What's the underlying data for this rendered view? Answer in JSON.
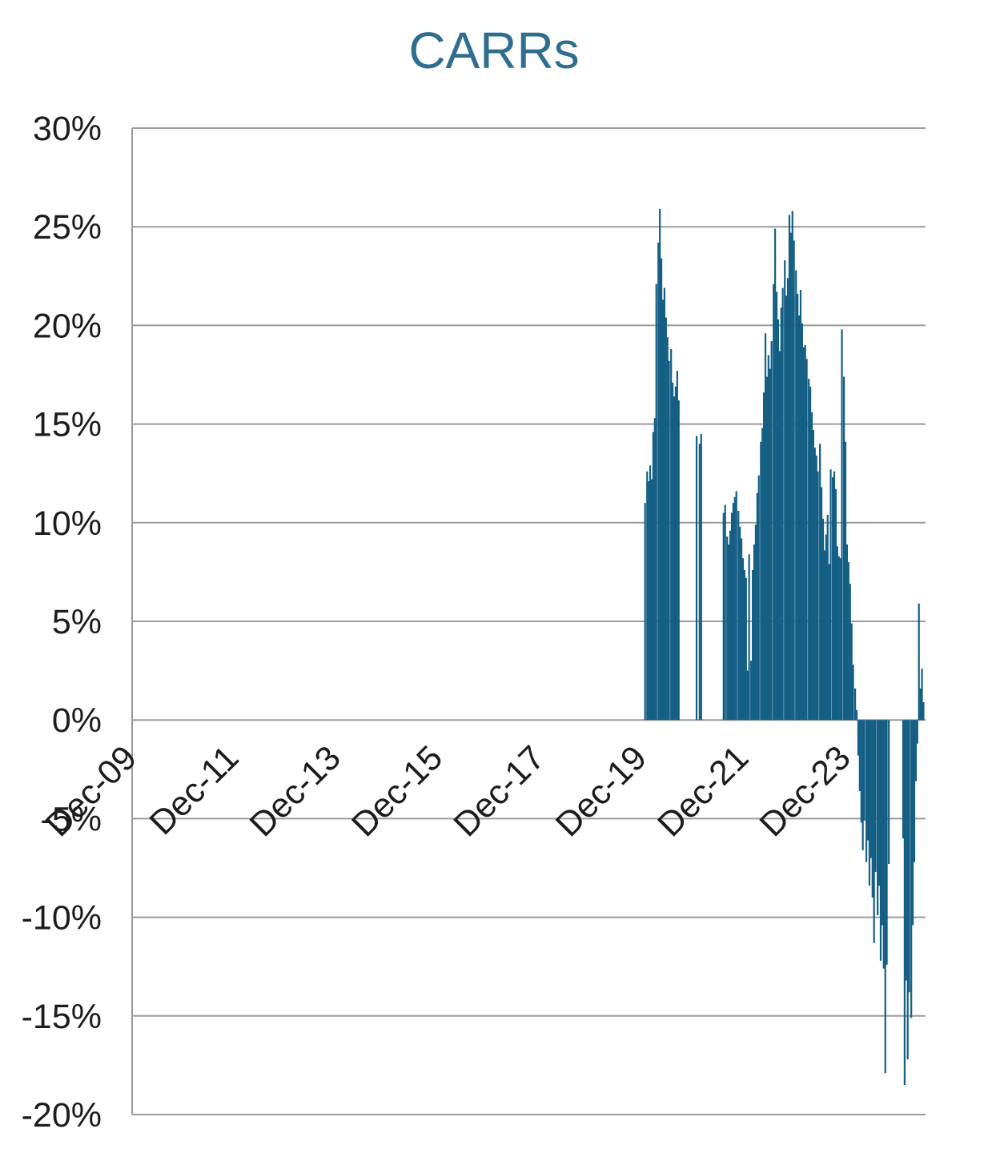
{
  "chart_data": {
    "type": "bar",
    "title": "CARRs",
    "legend": false,
    "grid": true,
    "colors": {
      "title": "#2e6e91",
      "bar": "#155f85",
      "grid": "#9b9b9b",
      "axis_text": "#1c1c1c",
      "background": "#ffffff"
    },
    "y_axis": {
      "min": -20,
      "max": 30,
      "step": 5,
      "ticks": [
        {
          "v": 30,
          "label": "30%"
        },
        {
          "v": 25,
          "label": "25%"
        },
        {
          "v": 20,
          "label": "20%"
        },
        {
          "v": 15,
          "label": "15%"
        },
        {
          "v": 10,
          "label": "10%"
        },
        {
          "v": 5,
          "label": "5%"
        },
        {
          "v": 0,
          "label": "0%"
        },
        {
          "v": -5,
          "label": "-5%"
        },
        {
          "v": -10,
          "label": "-10%"
        },
        {
          "v": -15,
          "label": "-15%"
        },
        {
          "v": -20,
          "label": "-20%"
        }
      ]
    },
    "x_axis": {
      "unit": "years since Dec-2009",
      "range": [
        0,
        15.56
      ],
      "label_rotation_deg": -45,
      "ticks": [
        {
          "pos": 0,
          "label": "Dec-09"
        },
        {
          "pos": 2,
          "label": "Dec-11"
        },
        {
          "pos": 4,
          "label": "Dec-13"
        },
        {
          "pos": 6,
          "label": "Dec-15"
        },
        {
          "pos": 8,
          "label": "Dec-17"
        },
        {
          "pos": 10,
          "label": "Dec-19"
        },
        {
          "pos": 12,
          "label": "Dec-21"
        },
        {
          "pos": 14,
          "label": "Dec-23"
        }
      ]
    },
    "points": [
      [
        10.06,
        11.0
      ],
      [
        10.1,
        12.6
      ],
      [
        10.13,
        12.1
      ],
      [
        10.16,
        12.9
      ],
      [
        10.19,
        12.2
      ],
      [
        10.22,
        14.6
      ],
      [
        10.25,
        15.3
      ],
      [
        10.28,
        22.1
      ],
      [
        10.32,
        24.2
      ],
      [
        10.35,
        25.9
      ],
      [
        10.38,
        23.4
      ],
      [
        10.41,
        21.3
      ],
      [
        10.44,
        21.9
      ],
      [
        10.47,
        20.4
      ],
      [
        10.5,
        19.4
      ],
      [
        10.53,
        18.2
      ],
      [
        10.57,
        18.8
      ],
      [
        10.6,
        17.1
      ],
      [
        10.63,
        16.4
      ],
      [
        10.66,
        16.9
      ],
      [
        10.69,
        17.7
      ],
      [
        10.72,
        16.2
      ],
      [
        11.07,
        14.4
      ],
      [
        11.13,
        14.0
      ],
      [
        11.16,
        14.5
      ],
      [
        11.6,
        10.5
      ],
      [
        11.63,
        10.9
      ],
      [
        11.67,
        9.3
      ],
      [
        11.7,
        8.9
      ],
      [
        11.73,
        9.6
      ],
      [
        11.76,
        10.5
      ],
      [
        11.79,
        11.0
      ],
      [
        11.82,
        11.3
      ],
      [
        11.85,
        11.6
      ],
      [
        11.89,
        10.6
      ],
      [
        11.92,
        9.8
      ],
      [
        11.95,
        9.2
      ],
      [
        11.98,
        8.2
      ],
      [
        12.01,
        7.6
      ],
      [
        12.04,
        7.2
      ],
      [
        12.07,
        2.5
      ],
      [
        12.1,
        8.4
      ],
      [
        12.14,
        3.0
      ],
      [
        12.17,
        7.6
      ],
      [
        12.2,
        8.9
      ],
      [
        12.23,
        9.9
      ],
      [
        12.26,
        11.5
      ],
      [
        12.29,
        12.4
      ],
      [
        12.33,
        14.1
      ],
      [
        12.36,
        14.8
      ],
      [
        12.39,
        16.6
      ],
      [
        12.42,
        19.6
      ],
      [
        12.45,
        17.4
      ],
      [
        12.48,
        18.5
      ],
      [
        12.51,
        17.8
      ],
      [
        12.54,
        19.2
      ],
      [
        12.58,
        22.1
      ],
      [
        12.61,
        24.9
      ],
      [
        12.64,
        21.7
      ],
      [
        12.67,
        20.3
      ],
      [
        12.7,
        18.7
      ],
      [
        12.73,
        20.9
      ],
      [
        12.76,
        21.9
      ],
      [
        12.8,
        23.3
      ],
      [
        12.83,
        21.5
      ],
      [
        12.86,
        22.4
      ],
      [
        12.89,
        25.6
      ],
      [
        12.92,
        24.7
      ],
      [
        12.95,
        25.8
      ],
      [
        12.98,
        24.3
      ],
      [
        13.02,
        22.8
      ],
      [
        13.05,
        21.6
      ],
      [
        13.08,
        20.5
      ],
      [
        13.11,
        21.8
      ],
      [
        13.14,
        20.1
      ],
      [
        13.17,
        18.9
      ],
      [
        13.2,
        19.0
      ],
      [
        13.23,
        18.3
      ],
      [
        13.27,
        17.3
      ],
      [
        13.3,
        16.9
      ],
      [
        13.33,
        15.6
      ],
      [
        13.36,
        14.7
      ],
      [
        13.39,
        13.8
      ],
      [
        13.42,
        13.4
      ],
      [
        13.45,
        12.6
      ],
      [
        13.49,
        14.0
      ],
      [
        13.52,
        11.8
      ],
      [
        13.55,
        10.2
      ],
      [
        13.58,
        8.6
      ],
      [
        13.61,
        9.4
      ],
      [
        13.64,
        10.4
      ],
      [
        13.67,
        7.9
      ],
      [
        13.7,
        12.7
      ],
      [
        13.74,
        12.3
      ],
      [
        13.77,
        12.6
      ],
      [
        13.8,
        11.7
      ],
      [
        13.83,
        8.8
      ],
      [
        13.86,
        8.3
      ],
      [
        13.89,
        8.2
      ],
      [
        13.92,
        19.8
      ],
      [
        13.96,
        17.4
      ],
      [
        13.99,
        14.1
      ],
      [
        14.02,
        8.9
      ],
      [
        14.05,
        8.0
      ],
      [
        14.08,
        6.9
      ],
      [
        14.11,
        4.9
      ],
      [
        14.14,
        2.8
      ],
      [
        14.18,
        1.6
      ],
      [
        14.21,
        0.5
      ],
      [
        14.24,
        -1.8
      ],
      [
        14.27,
        -3.6
      ],
      [
        14.3,
        -5.2
      ],
      [
        14.33,
        -6.6
      ],
      [
        14.36,
        -5.1
      ],
      [
        14.4,
        -7.2
      ],
      [
        14.43,
        -6.1
      ],
      [
        14.46,
        -8.4
      ],
      [
        14.49,
        -7.0
      ],
      [
        14.52,
        -9.0
      ],
      [
        14.55,
        -11.3
      ],
      [
        14.58,
        -7.7
      ],
      [
        14.62,
        -9.9
      ],
      [
        14.65,
        -8.4
      ],
      [
        14.68,
        -12.2
      ],
      [
        14.71,
        -10.4
      ],
      [
        14.74,
        -12.6
      ],
      [
        14.77,
        -17.9
      ],
      [
        14.8,
        -12.4
      ],
      [
        14.84,
        -7.3
      ],
      [
        15.12,
        -6.0
      ],
      [
        15.15,
        -18.5
      ],
      [
        15.18,
        -13.2
      ],
      [
        15.21,
        -17.2
      ],
      [
        15.24,
        -13.8
      ],
      [
        15.28,
        -15.1
      ],
      [
        15.31,
        -10.4
      ],
      [
        15.34,
        -7.2
      ],
      [
        15.37,
        -3.1
      ],
      [
        15.4,
        -1.2
      ],
      [
        15.43,
        5.9
      ],
      [
        15.46,
        1.6
      ],
      [
        15.49,
        2.6
      ],
      [
        15.52,
        0.9
      ]
    ]
  }
}
